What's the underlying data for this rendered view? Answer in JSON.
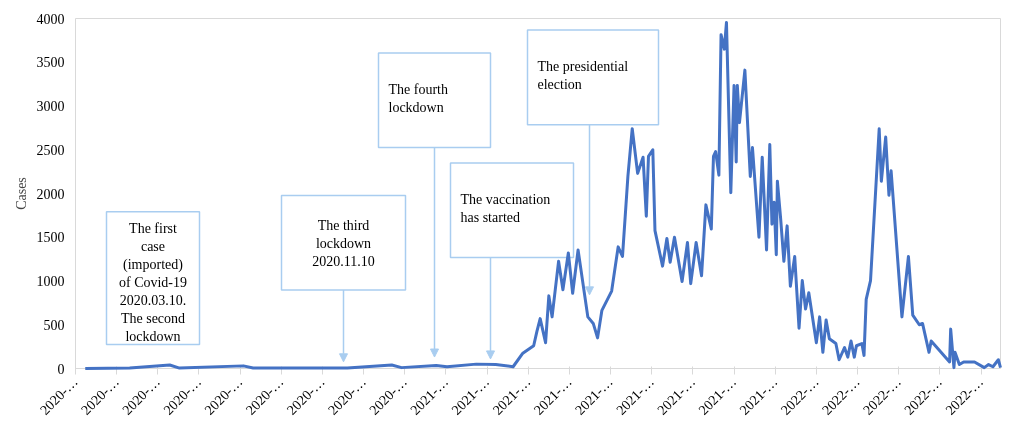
{
  "chart_data": {
    "type": "line",
    "ylabel": "Cases",
    "color": "#4472c4",
    "xlim": [
      "2020-03-01",
      "2022-07-03"
    ],
    "ylim": [
      0,
      4000
    ],
    "yticks": [
      0,
      500,
      1000,
      1500,
      2000,
      2500,
      3000,
      3500,
      4000
    ],
    "xticks": [
      {
        "value": "2020-03-01",
        "label": "2020-…"
      },
      {
        "value": "2020-04-08",
        "label": "2020-…"
      },
      {
        "value": "2020-05-16",
        "label": "2020-…"
      },
      {
        "value": "2020-06-23",
        "label": "2020-…"
      },
      {
        "value": "2020-07-31",
        "label": "2020-…"
      },
      {
        "value": "2020-09-07",
        "label": "2020-…"
      },
      {
        "value": "2020-10-15",
        "label": "2020-…"
      },
      {
        "value": "2020-11-22",
        "label": "2020-…"
      },
      {
        "value": "2020-12-30",
        "label": "2020-…"
      },
      {
        "value": "2021-02-06",
        "label": "2021-…"
      },
      {
        "value": "2021-03-16",
        "label": "2021-…"
      },
      {
        "value": "2021-04-23",
        "label": "2021-…"
      },
      {
        "value": "2021-05-31",
        "label": "2021-…"
      },
      {
        "value": "2021-07-08",
        "label": "2021-…"
      },
      {
        "value": "2021-08-15",
        "label": "2021-…"
      },
      {
        "value": "2021-09-22",
        "label": "2021-…"
      },
      {
        "value": "2021-10-30",
        "label": "2021-…"
      },
      {
        "value": "2021-12-07",
        "label": "2021-…"
      },
      {
        "value": "2022-01-14",
        "label": "2022-…"
      },
      {
        "value": "2022-02-21",
        "label": "2022-…"
      },
      {
        "value": "2022-03-31",
        "label": "2022-…"
      },
      {
        "value": "2022-05-08",
        "label": "2022-…"
      },
      {
        "value": "2022-06-15",
        "label": "2022-…"
      }
    ],
    "x": [
      "2020-03-10",
      "2020-04-20",
      "2020-05-27",
      "2020-06-05",
      "2020-08-03",
      "2020-08-12",
      "2020-11-07",
      "2020-12-18",
      "2020-12-27",
      "2021-01-28",
      "2021-02-07",
      "2021-03-06",
      "2021-03-24",
      "2021-04-09",
      "2021-04-18",
      "2021-04-28",
      "2021-05-01",
      "2021-05-04",
      "2021-05-09",
      "2021-05-12",
      "2021-05-15",
      "2021-05-21",
      "2021-05-25",
      "2021-05-30",
      "2021-06-03",
      "2021-06-08",
      "2021-06-17",
      "2021-06-22",
      "2021-06-26",
      "2021-06-30",
      "2021-07-09",
      "2021-07-15",
      "2021-07-19",
      "2021-07-24",
      "2021-07-28",
      "2021-08-02",
      "2021-08-07",
      "2021-08-10",
      "2021-08-12",
      "2021-08-16",
      "2021-08-18",
      "2021-08-25",
      "2021-08-29",
      "2021-09-01",
      "2021-09-05",
      "2021-09-12",
      "2021-09-17",
      "2021-09-20",
      "2021-09-25",
      "2021-09-30",
      "2021-10-04",
      "2021-10-09",
      "2021-10-11",
      "2021-10-13",
      "2021-10-16",
      "2021-10-18",
      "2021-10-21",
      "2021-10-23",
      "2021-10-27",
      "2021-10-30",
      "2021-11-01",
      "2021-11-02",
      "2021-11-04",
      "2021-11-09",
      "2021-11-14",
      "2021-11-16",
      "2021-11-22",
      "2021-11-25",
      "2021-11-29",
      "2021-12-02",
      "2021-12-04",
      "2021-12-06",
      "2021-12-08",
      "2021-12-09",
      "2021-12-12",
      "2021-12-15",
      "2021-12-18",
      "2021-12-21",
      "2021-12-25",
      "2021-12-29",
      "2022-01-01",
      "2022-01-04",
      "2022-01-07",
      "2022-01-14",
      "2022-01-17",
      "2022-01-20",
      "2022-01-23",
      "2022-01-26",
      "2022-02-01",
      "2022-02-04",
      "2022-02-09",
      "2022-02-12",
      "2022-02-15",
      "2022-02-18",
      "2022-02-20",
      "2022-02-25",
      "2022-02-27",
      "2022-03-01",
      "2022-03-05",
      "2022-03-13",
      "2022-03-15",
      "2022-03-19",
      "2022-03-22",
      "2022-03-24",
      "2022-04-03",
      "2022-04-09",
      "2022-04-13",
      "2022-04-19",
      "2022-04-22",
      "2022-04-28",
      "2022-04-30",
      "2022-05-17",
      "2022-05-18",
      "2022-05-21",
      "2022-05-22",
      "2022-05-26",
      "2022-05-30",
      "2022-06-09",
      "2022-06-18",
      "2022-06-22",
      "2022-06-26",
      "2022-07-01",
      "2022-07-03"
    ],
    "values": [
      0,
      5,
      40,
      5,
      30,
      5,
      5,
      40,
      10,
      35,
      20,
      50,
      45,
      20,
      175,
      260,
      425,
      570,
      295,
      830,
      590,
      1225,
      900,
      1320,
      860,
      1355,
      590,
      515,
      350,
      665,
      885,
      1390,
      1280,
      2195,
      2740,
      2230,
      2415,
      1740,
      2425,
      2500,
      1575,
      1170,
      1485,
      1215,
      1500,
      995,
      1440,
      970,
      1440,
      1060,
      1870,
      1595,
      2425,
      2480,
      2210,
      3815,
      3650,
      3955,
      2010,
      3235,
      2360,
      3235,
      2810,
      3410,
      2195,
      2525,
      1500,
      2415,
      1355,
      2560,
      1650,
      1900,
      1300,
      2140,
      1715,
      1225,
      1630,
      940,
      1280,
      460,
      1005,
      680,
      865,
      295,
      590,
      185,
      555,
      340,
      285,
      100,
      240,
      130,
      315,
      130,
      260,
      285,
      150,
      790,
      1005,
      2740,
      2140,
      2645,
      1980,
      2260,
      590,
      1280,
      610,
      500,
      515,
      185,
      315,
      75,
      450,
      10,
      185,
      45,
      75,
      75,
      10,
      45,
      20,
      100,
      10
    ],
    "annotations": [
      "The first\ncase\n(imported)\nof Covid-19\n2020.03.10.\nThe second\nlockdown",
      "The third\nlockdown\n2020.11.10",
      "The fourth\nlockdown",
      "The vaccination\nhas started",
      "The presidential\nelection"
    ]
  }
}
